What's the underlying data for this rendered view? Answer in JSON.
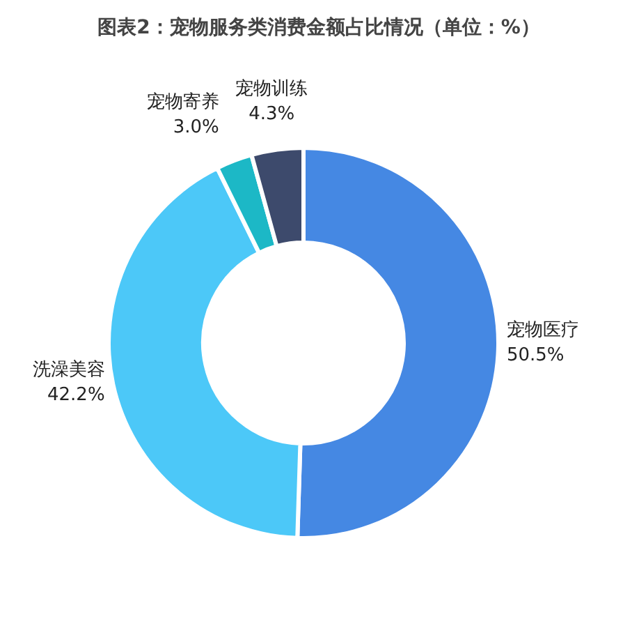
{
  "chart_data": {
    "type": "donut",
    "title": "图表2：宠物服务类消费金额占比情况（单位：%）",
    "categories": [
      "宠物医疗",
      "洗澡美容",
      "宠物寄养",
      "宠物训练"
    ],
    "values": [
      50.5,
      42.2,
      3.0,
      4.3
    ],
    "colors": [
      "#4588e3",
      "#4cc8f8",
      "#1cb8c6",
      "#3d4a6c"
    ],
    "value_labels": [
      "50.5%",
      "42.2%",
      "3.0%",
      "4.3%"
    ]
  }
}
